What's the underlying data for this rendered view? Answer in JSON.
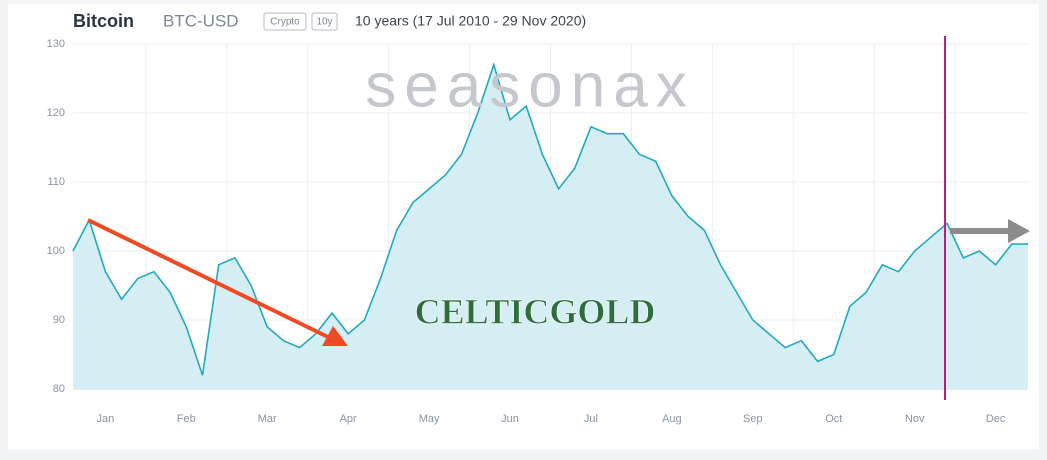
{
  "chart_data": {
    "type": "area-line",
    "title": "Bitcoin",
    "symbol": "BTC-USD",
    "badges": [
      "Crypto",
      "10y"
    ],
    "subtitle": "10 years (17 Jul 2010 - 29 Nov 2020)",
    "watermarks": [
      "seasonax",
      "CELTICGOLD"
    ],
    "categories": [
      null,
      null,
      "Jan",
      null,
      null,
      null,
      null,
      "Feb",
      null,
      null,
      null,
      null,
      "Mar",
      null,
      null,
      null,
      null,
      "Apr",
      null,
      null,
      null,
      null,
      "May",
      null,
      null,
      null,
      null,
      "Jun",
      null,
      null,
      null,
      null,
      "Jul",
      null,
      null,
      null,
      null,
      "Aug",
      null,
      null,
      null,
      null,
      "Sep",
      null,
      null,
      null,
      null,
      "Oct",
      null,
      null,
      null,
      null,
      "Nov",
      null,
      null,
      null,
      null,
      "Dec",
      null,
      null
    ],
    "series": [
      {
        "name": "BTC-USD",
        "color": "#22a9c4",
        "values": [
          100,
          104.5,
          97,
          93,
          96,
          97,
          94,
          89,
          82,
          98,
          99,
          95,
          89,
          87,
          86,
          88,
          91,
          88,
          90,
          96,
          103,
          107,
          109,
          111,
          114,
          120,
          127,
          119,
          121,
          114,
          109,
          112,
          118,
          117,
          117,
          114,
          113,
          108,
          105,
          103,
          98,
          94,
          90,
          88,
          86,
          87,
          84,
          85,
          92,
          94,
          98,
          97,
          100,
          102,
          104,
          99,
          100,
          98,
          101,
          101
        ]
      }
    ],
    "ylim": [
      80,
      130
    ],
    "yticks": [
      80,
      90,
      100,
      110,
      120,
      130
    ],
    "grid": true,
    "fill_color": "#d5eef3",
    "marker_color": "#b0257a"
  }
}
